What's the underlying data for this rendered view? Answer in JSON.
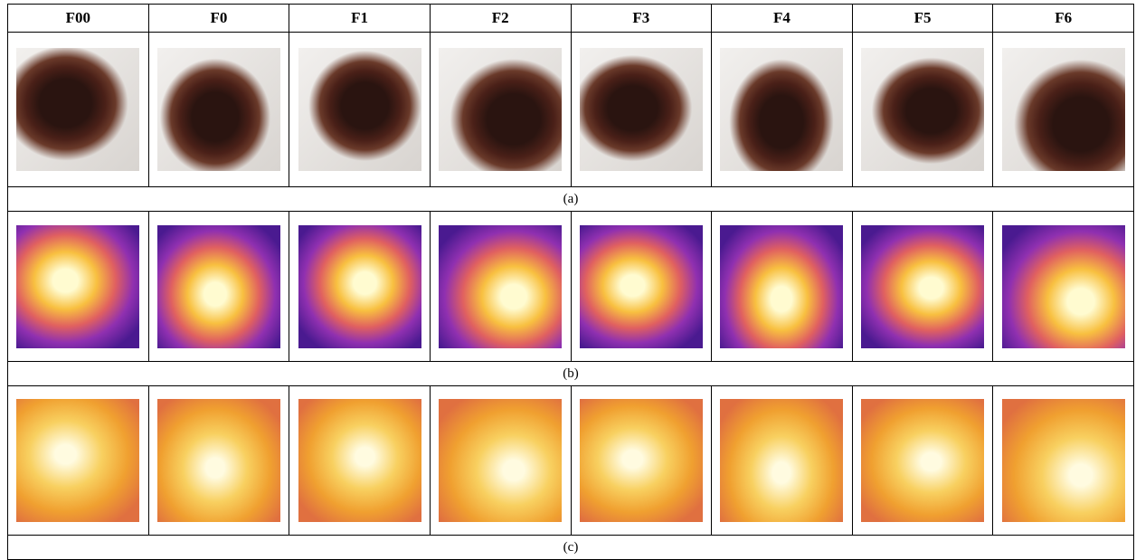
{
  "header": {
    "columns": [
      "F00",
      "F0",
      "F1",
      "F2",
      "F3",
      "F4",
      "F5",
      "F6"
    ]
  },
  "captions": [
    "(a)",
    "(b)",
    "(c)"
  ]
}
